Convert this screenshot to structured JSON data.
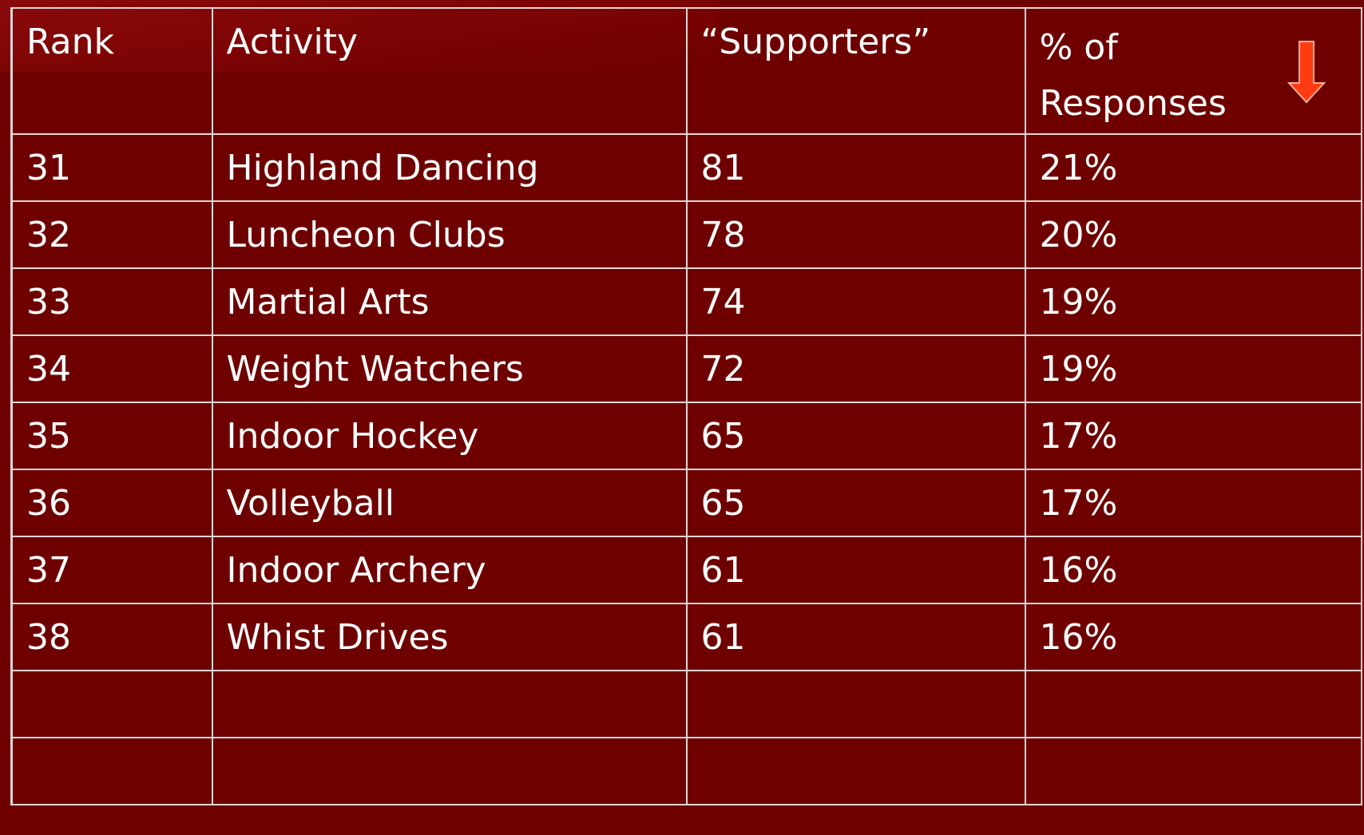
{
  "table": {
    "header": [
      "Rank",
      "Activity",
      "“Supporters”",
      "% of Responses"
    ],
    "rows": [
      [
        31,
        "Highland Dancing",
        81,
        "21%"
      ],
      [
        32,
        "Luncheon Clubs",
        78,
        "20%"
      ],
      [
        33,
        "Martial Arts",
        74,
        "19%"
      ],
      [
        34,
        "Weight Watchers",
        72,
        "19%"
      ],
      [
        35,
        "Indoor Hockey",
        65,
        "17%"
      ],
      [
        36,
        "Volleyball",
        65,
        "17%"
      ],
      [
        37,
        "Indoor Archery",
        61,
        "16%"
      ],
      [
        38,
        "Whist Drives",
        61,
        "16%"
      ]
    ]
  }
}
